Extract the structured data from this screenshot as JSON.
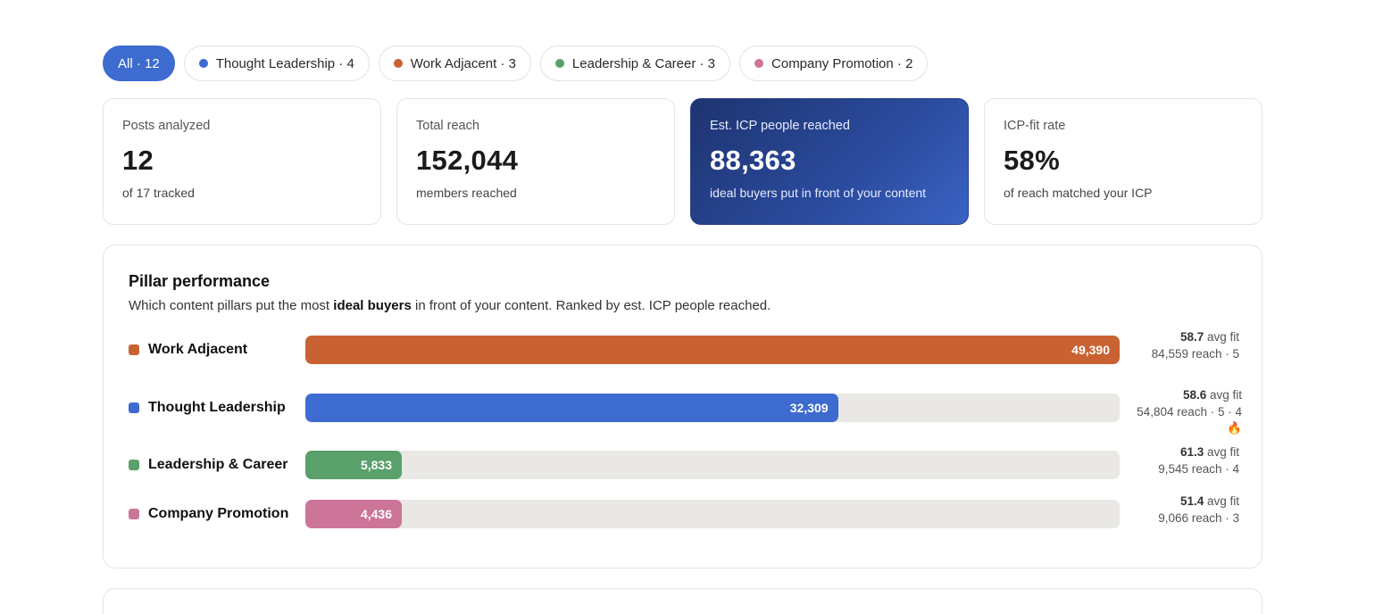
{
  "filters": [
    {
      "label": "All · 12",
      "active": true,
      "color": ""
    },
    {
      "label": "Thought Leadership · 4",
      "active": false,
      "color": "#3d6bcf"
    },
    {
      "label": "Work Adjacent · 3",
      "active": false,
      "color": "#c96232"
    },
    {
      "label": "Leadership & Career · 3",
      "active": false,
      "color": "#59a06b"
    },
    {
      "label": "Company Promotion · 2",
      "active": false,
      "color": "#cc7598"
    }
  ],
  "kpis": [
    {
      "label": "Posts analyzed",
      "value": "12",
      "sub": "of 17 tracked"
    },
    {
      "label": "Total reach",
      "value": "152,044",
      "sub": "members reached"
    },
    {
      "label": "Est. ICP people reached",
      "value": "88,363",
      "sub": "ideal buyers put in front of your content"
    },
    {
      "label": "ICP-fit rate",
      "value": "58%",
      "sub": "of reach matched your ICP"
    }
  ],
  "pillar": {
    "title": "Pillar performance",
    "desc_before": "Which content pillars put the most ",
    "desc_bold": "ideal buyers",
    "desc_after": " in front of your content. Ranked by est. ICP people reached.",
    "max_value": 49390,
    "rows": [
      {
        "name": "Work Adjacent",
        "color": "#c96232",
        "value": 49390,
        "value_label": "49,390",
        "fit": "58.7",
        "fit_suffix": " avg fit",
        "detail": "84,559 reach · 5"
      },
      {
        "name": "Thought Leadership",
        "color": "#3d6bcf",
        "value": 32309,
        "value_label": "32,309",
        "fit": "58.6",
        "fit_suffix": " avg fit",
        "detail": "54,804 reach · 5 · 4🔥"
      },
      {
        "name": "Leadership & Career",
        "color": "#59a06b",
        "value": 5833,
        "value_label": "5,833",
        "fit": "61.3",
        "fit_suffix": " avg fit",
        "detail": "9,545 reach · 4"
      },
      {
        "name": "Company Promotion",
        "color": "#cc7598",
        "value": 4436,
        "value_label": "4,436",
        "fit": "51.4",
        "fit_suffix": " avg fit",
        "detail": "9,066 reach · 3"
      }
    ]
  }
}
